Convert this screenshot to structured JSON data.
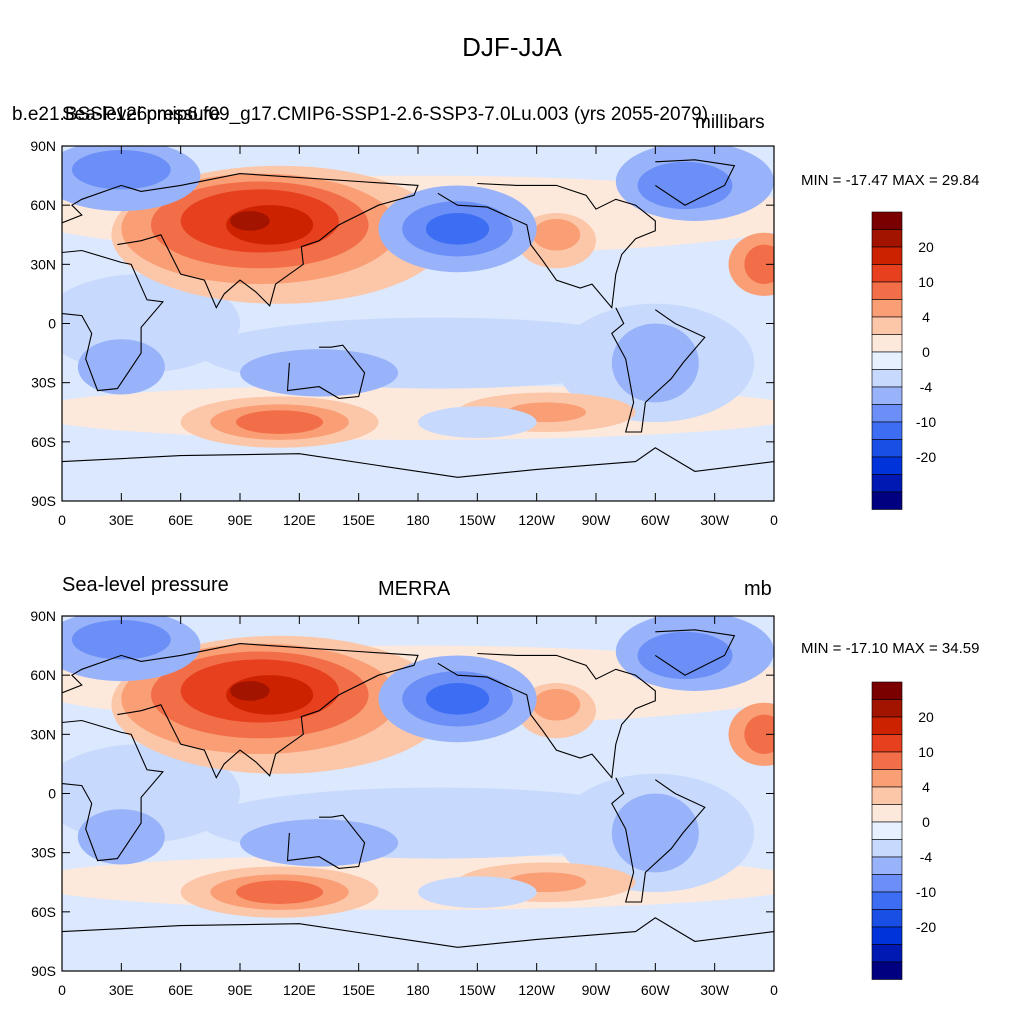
{
  "figure": {
    "title": "DJF-JJA"
  },
  "colors": {
    "levels": [
      "#000080",
      "#0019b3",
      "#0033d9",
      "#1a4fe6",
      "#3d6df2",
      "#6b8ff7",
      "#99b3fa",
      "#c7d9fc",
      "#e6f0fe",
      "#fde9dc",
      "#fcc6a8",
      "#f99e75",
      "#f26e48",
      "#e6401f",
      "#cc2200",
      "#a31400",
      "#7a0000"
    ],
    "land_outline": "#000000"
  },
  "panels": [
    {
      "name": "model",
      "left_title": "b.e21.BSSP126cmip6.f09_g17.CMIP6-SSP1-2.6-SSP3-7.0Lu.003 (yrs 2055-2079)",
      "overlap_title": "Sea-level pressure",
      "units": "millibars",
      "center_title": "",
      "stats": "MIN = -17.47 MAX =  29.84"
    },
    {
      "name": "obs",
      "left_title": "Sea-level pressure",
      "center_title": "MERRA",
      "units": "mb",
      "stats": "MIN = -17.10 MAX =  34.59"
    }
  ],
  "axes": {
    "lat_labels": [
      "90N",
      "60N",
      "30N",
      "0",
      "30S",
      "60S",
      "90S"
    ],
    "lon_labels": [
      "0",
      "30E",
      "60E",
      "90E",
      "120E",
      "150E",
      "180",
      "150W",
      "120W",
      "90W",
      "60W",
      "30W",
      "0"
    ]
  },
  "colorbar": {
    "labels": [
      "20",
      "10",
      "4",
      "0",
      "-4",
      "-10",
      "-20"
    ]
  }
}
